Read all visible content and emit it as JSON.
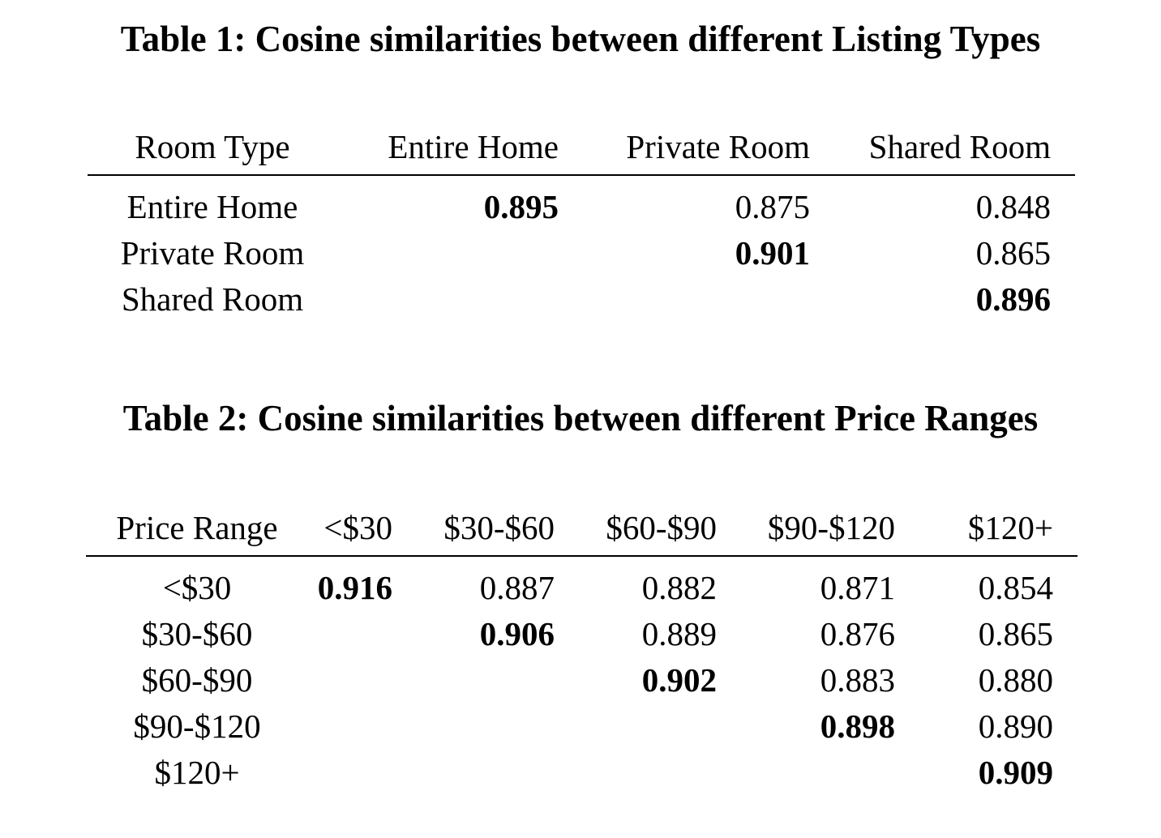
{
  "table1": {
    "caption": "Table 1: Cosine similarities between different Listing Types",
    "headers": [
      "Room Type",
      "Entire Home",
      "Private Room",
      "Shared Room"
    ],
    "rows": [
      {
        "label": "Entire Home",
        "values": [
          "0.895",
          "0.875",
          "0.848"
        ]
      },
      {
        "label": "Private Room",
        "values": [
          "",
          "0.901",
          "0.865"
        ]
      },
      {
        "label": "Shared Room",
        "values": [
          "",
          "",
          "0.896"
        ]
      }
    ]
  },
  "table2": {
    "caption": "Table 2: Cosine similarities between different Price Ranges",
    "headers": [
      "Price Range",
      "<$30",
      "$30-$60",
      "$60-$90",
      "$90-$120",
      "$120+"
    ],
    "rows": [
      {
        "label": "<$30",
        "values": [
          "0.916",
          "0.887",
          "0.882",
          "0.871",
          "0.854"
        ]
      },
      {
        "label": "$30-$60",
        "values": [
          "",
          "0.906",
          "0.889",
          "0.876",
          "0.865"
        ]
      },
      {
        "label": "$60-$90",
        "values": [
          "",
          "",
          "0.902",
          "0.883",
          "0.880"
        ]
      },
      {
        "label": "$90-$120",
        "values": [
          "",
          "",
          "",
          "0.898",
          "0.890"
        ]
      },
      {
        "label": "$120+",
        "values": [
          "",
          "",
          "",
          "",
          "0.909"
        ]
      }
    ]
  }
}
